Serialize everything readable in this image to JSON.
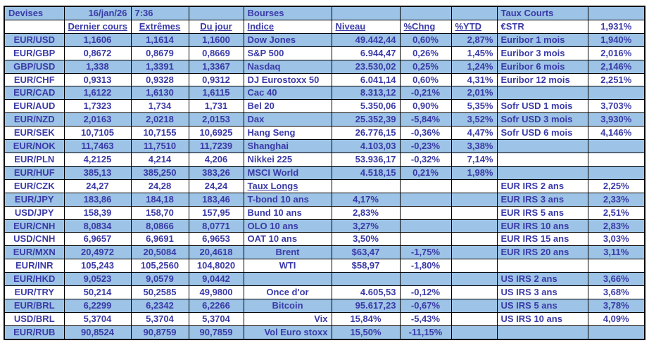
{
  "meta": {
    "date": "16/jan/26",
    "time": "7:36"
  },
  "sections": {
    "currencies_title": "Devises",
    "markets_title": "Bourses",
    "short_rates_title": "Taux Courts",
    "long_rates_title": "Taux Longs"
  },
  "colors": {
    "band_blue": "#9DC3E6",
    "text_indigo": "#3A3AA8",
    "grid_border": "#000000",
    "background": "#FFFFFF"
  },
  "grid": {
    "col_defaults": [
      "c",
      "c",
      "c",
      "c",
      "l",
      "r",
      "c",
      "r",
      "l",
      "c"
    ],
    "rows": [
      [
        {
          "t": "Devises",
          "a": "l"
        },
        {
          "t": "16/jan/26",
          "a": "r"
        },
        {
          "t": "7:36",
          "a": "l"
        },
        {
          "t": ""
        },
        {
          "t": "Bourses"
        },
        {
          "t": ""
        },
        {
          "t": ""
        },
        {
          "t": ""
        },
        {
          "t": "Taux Courts"
        },
        {
          "t": ""
        }
      ],
      [
        {
          "t": ""
        },
        {
          "t": "Dernier cours",
          "u": true
        },
        {
          "t": "Extrêmes",
          "u": true
        },
        {
          "t": "Du jour",
          "u": true
        },
        {
          "t": "Indice",
          "u": true
        },
        {
          "t": "Niveau",
          "a": "l",
          "u": true
        },
        {
          "t": "%Chng",
          "a": "l",
          "u": true
        },
        {
          "t": "%YTD",
          "a": "l",
          "u": true
        },
        {
          "t": "€STR"
        },
        {
          "t": "1,931%"
        }
      ],
      [
        {
          "t": "EUR/USD"
        },
        {
          "t": "1,1606"
        },
        {
          "t": "1,1614"
        },
        {
          "t": "1,1600"
        },
        {
          "t": "Dow Jones"
        },
        {
          "t": "49.442,44"
        },
        {
          "t": "0,60%"
        },
        {
          "t": "2,87%"
        },
        {
          "t": "Euribor 1 mois"
        },
        {
          "t": "1,940%"
        }
      ],
      [
        {
          "t": "EUR/GBP"
        },
        {
          "t": "0,8672"
        },
        {
          "t": "0,8679"
        },
        {
          "t": "0,8669"
        },
        {
          "t": "S&P 500"
        },
        {
          "t": "6.944,47"
        },
        {
          "t": "0,26%"
        },
        {
          "t": "1,45%"
        },
        {
          "t": "Euribor 3 mois"
        },
        {
          "t": "2,016%"
        }
      ],
      [
        {
          "t": "GBP/USD"
        },
        {
          "t": "1,338"
        },
        {
          "t": "1,3391"
        },
        {
          "t": "1,3367"
        },
        {
          "t": "Nasdaq"
        },
        {
          "t": "23.530,02"
        },
        {
          "t": "0,25%"
        },
        {
          "t": "1,24%"
        },
        {
          "t": "Euribor 6 mois"
        },
        {
          "t": "2,146%"
        }
      ],
      [
        {
          "t": "EUR/CHF"
        },
        {
          "t": "0,9313"
        },
        {
          "t": "0,9328"
        },
        {
          "t": "0,9312"
        },
        {
          "t": "DJ Eurostoxx 50"
        },
        {
          "t": "6.041,14"
        },
        {
          "t": "0,60%"
        },
        {
          "t": "4,31%"
        },
        {
          "t": "Euribor 12 mois"
        },
        {
          "t": "2,251%"
        }
      ],
      [
        {
          "t": "EUR/CAD"
        },
        {
          "t": "1,6122"
        },
        {
          "t": "1,6130"
        },
        {
          "t": "1,6115"
        },
        {
          "t": "Cac 40"
        },
        {
          "t": "8.313,12"
        },
        {
          "t": "-0,21%"
        },
        {
          "t": "2,01%"
        },
        {
          "t": ""
        },
        {
          "t": ""
        }
      ],
      [
        {
          "t": "EUR/AUD"
        },
        {
          "t": "1,7323"
        },
        {
          "t": "1,734"
        },
        {
          "t": "1,731"
        },
        {
          "t": "Bel 20"
        },
        {
          "t": "5.350,06"
        },
        {
          "t": "0,90%"
        },
        {
          "t": "5,35%"
        },
        {
          "t": "Sofr USD 1 mois"
        },
        {
          "t": "3,703%"
        }
      ],
      [
        {
          "t": "EUR/NZD"
        },
        {
          "t": "2,0163"
        },
        {
          "t": "2,0218"
        },
        {
          "t": "2,0153"
        },
        {
          "t": "Dax"
        },
        {
          "t": "25.352,39"
        },
        {
          "t": "-5,84%"
        },
        {
          "t": "3,52%"
        },
        {
          "t": "Sofr USD 3 mois"
        },
        {
          "t": "3,930%"
        }
      ],
      [
        {
          "t": "EUR/SEK"
        },
        {
          "t": "10,7105"
        },
        {
          "t": "10,7155"
        },
        {
          "t": "10,6925"
        },
        {
          "t": "Hang Seng"
        },
        {
          "t": "26.776,15"
        },
        {
          "t": "-0,36%"
        },
        {
          "t": "4,47%"
        },
        {
          "t": "Sofr USD 6 mois"
        },
        {
          "t": "4,146%"
        }
      ],
      [
        {
          "t": "EUR/NOK"
        },
        {
          "t": "11,7463"
        },
        {
          "t": "11,7510"
        },
        {
          "t": "11,7239"
        },
        {
          "t": "Shanghai"
        },
        {
          "t": "4.103,03"
        },
        {
          "t": "-0,23%"
        },
        {
          "t": "3,38%"
        },
        {
          "t": ""
        },
        {
          "t": ""
        }
      ],
      [
        {
          "t": "EUR/PLN"
        },
        {
          "t": "4,2125"
        },
        {
          "t": "4,214"
        },
        {
          "t": "4,206"
        },
        {
          "t": "Nikkei 225"
        },
        {
          "t": "53.936,17"
        },
        {
          "t": "-0,32%"
        },
        {
          "t": "7,14%"
        },
        {
          "t": ""
        },
        {
          "t": ""
        }
      ],
      [
        {
          "t": "EUR/HUF"
        },
        {
          "t": "385,13"
        },
        {
          "t": "385,250"
        },
        {
          "t": "383,26"
        },
        {
          "t": "MSCI World"
        },
        {
          "t": "4.518,15"
        },
        {
          "t": "0,21%"
        },
        {
          "t": "1,98%"
        },
        {
          "t": ""
        },
        {
          "t": ""
        }
      ],
      [
        {
          "t": "EUR/CZK"
        },
        {
          "t": "24,27"
        },
        {
          "t": "24,28"
        },
        {
          "t": "24,24"
        },
        {
          "t": "Taux Longs",
          "u": true
        },
        {
          "t": ""
        },
        {
          "t": ""
        },
        {
          "t": ""
        },
        {
          "t": "EUR IRS 2 ans"
        },
        {
          "t": "2,25%"
        }
      ],
      [
        {
          "t": "EUR/JPY"
        },
        {
          "t": "183,86"
        },
        {
          "t": "184,18"
        },
        {
          "t": "183,46"
        },
        {
          "t": "T-bond 10 ans"
        },
        {
          "t": "4,17%",
          "a": "c"
        },
        {
          "t": ""
        },
        {
          "t": ""
        },
        {
          "t": "EUR IRS 3 ans"
        },
        {
          "t": "2,33%"
        }
      ],
      [
        {
          "t": "USD/JPY"
        },
        {
          "t": "158,39"
        },
        {
          "t": "158,70"
        },
        {
          "t": "157,95"
        },
        {
          "t": "Bund 10 ans"
        },
        {
          "t": "2,83%",
          "a": "c"
        },
        {
          "t": ""
        },
        {
          "t": ""
        },
        {
          "t": "EUR IRS 5 ans"
        },
        {
          "t": "2,51%"
        }
      ],
      [
        {
          "t": "EUR/CNH"
        },
        {
          "t": "8,0834"
        },
        {
          "t": "8,0866"
        },
        {
          "t": "8,0771"
        },
        {
          "t": "OLO 10 ans"
        },
        {
          "t": "3,27%",
          "a": "c"
        },
        {
          "t": ""
        },
        {
          "t": ""
        },
        {
          "t": "EUR IRS 10 ans"
        },
        {
          "t": "2,83%"
        }
      ],
      [
        {
          "t": "USD/CNH"
        },
        {
          "t": "6,9657"
        },
        {
          "t": "6,9691"
        },
        {
          "t": "6,9653"
        },
        {
          "t": "OAT 10 ans"
        },
        {
          "t": "3,50%",
          "a": "c"
        },
        {
          "t": ""
        },
        {
          "t": ""
        },
        {
          "t": "EUR IRS 15 ans"
        },
        {
          "t": "3,03%"
        }
      ],
      [
        {
          "t": "EUR/MXN"
        },
        {
          "t": "20,4972"
        },
        {
          "t": "20,5084"
        },
        {
          "t": "20,4618"
        },
        {
          "t": "Brent",
          "a": "c"
        },
        {
          "t": "$63,47",
          "a": "c"
        },
        {
          "t": "-1,75%"
        },
        {
          "t": ""
        },
        {
          "t": "EUR IRS 20 ans"
        },
        {
          "t": "3,11%"
        }
      ],
      [
        {
          "t": "EUR/INR"
        },
        {
          "t": "105,243"
        },
        {
          "t": "105,2560"
        },
        {
          "t": "104,8020"
        },
        {
          "t": "WTI",
          "a": "c"
        },
        {
          "t": "$58,97",
          "a": "c"
        },
        {
          "t": "-1,80%"
        },
        {
          "t": ""
        },
        {
          "t": ""
        },
        {
          "t": ""
        }
      ],
      [
        {
          "t": "EUR/HKD"
        },
        {
          "t": "9,0523"
        },
        {
          "t": "9,0579"
        },
        {
          "t": "9,0442"
        },
        {
          "t": ""
        },
        {
          "t": ""
        },
        {
          "t": ""
        },
        {
          "t": ""
        },
        {
          "t": "US IRS 2 ans"
        },
        {
          "t": "3,66%"
        }
      ],
      [
        {
          "t": "EUR/TRY"
        },
        {
          "t": "50,214"
        },
        {
          "t": "50,2585"
        },
        {
          "t": "49,9800"
        },
        {
          "t": "Once d'or",
          "a": "c"
        },
        {
          "t": "4.605,53"
        },
        {
          "t": "-0,12%"
        },
        {
          "t": ""
        },
        {
          "t": "US IRS 3 ans"
        },
        {
          "t": "3,68%"
        }
      ],
      [
        {
          "t": "EUR/BRL"
        },
        {
          "t": "6,2299"
        },
        {
          "t": "6,2342"
        },
        {
          "t": "6,2266"
        },
        {
          "t": "Bitcoin",
          "a": "c"
        },
        {
          "t": "95.617,23"
        },
        {
          "t": "-0,67%"
        },
        {
          "t": ""
        },
        {
          "t": "US IRS 5 ans"
        },
        {
          "t": "3,78%"
        }
      ],
      [
        {
          "t": "USD/BRL"
        },
        {
          "t": "5,3704"
        },
        {
          "t": "5,3704"
        },
        {
          "t": "5,3704"
        },
        {
          "t": "Vix",
          "a": "r"
        },
        {
          "t": "15,84%",
          "a": "c"
        },
        {
          "t": "-5,43%"
        },
        {
          "t": ""
        },
        {
          "t": "US IRS 10 ans"
        },
        {
          "t": "4,09%"
        }
      ],
      [
        {
          "t": "EUR/RUB"
        },
        {
          "t": "90,8524"
        },
        {
          "t": "90,8759"
        },
        {
          "t": "90,7859"
        },
        {
          "t": "Vol Euro stoxx",
          "a": "r"
        },
        {
          "t": "15,50%",
          "a": "c"
        },
        {
          "t": "-11,15%"
        },
        {
          "t": ""
        },
        {
          "t": ""
        },
        {
          "t": ""
        }
      ]
    ]
  }
}
